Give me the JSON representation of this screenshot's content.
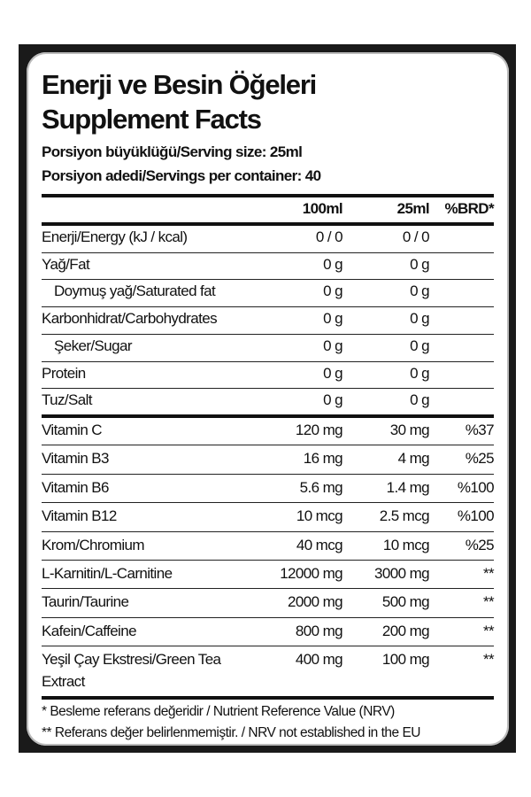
{
  "title_tr": "Enerji ve Besin Öğeleri",
  "title_en": "Supplement Facts",
  "serving_size": "Porsiyon büyüklüğü/Serving size: 25ml",
  "servings_per_container": "Porsiyon adedi/Servings per container: 40",
  "columns": [
    "",
    "100ml",
    "25ml",
    "%BRD*"
  ],
  "macros": [
    {
      "name": "Enerji/Energy (kJ / kcal)",
      "per100": "0 / 0",
      "per25": "0 / 0",
      "nrv": ""
    },
    {
      "name": "Yağ/Fat",
      "per100": "0 g",
      "per25": "0 g",
      "nrv": ""
    },
    {
      "name": "Doymuş yağ/Saturated fat",
      "per100": "0 g",
      "per25": "0 g",
      "nrv": ""
    },
    {
      "name": "Karbonhidrat/Carbohydrates",
      "per100": "0 g",
      "per25": "0 g",
      "nrv": ""
    },
    {
      "name": "Şeker/Sugar",
      "per100": "0 g",
      "per25": "0 g",
      "nrv": ""
    },
    {
      "name": "Protein",
      "per100": "0 g",
      "per25": "0 g",
      "nrv": ""
    },
    {
      "name": "Tuz/Salt",
      "per100": "0 g",
      "per25": "0 g",
      "nrv": ""
    }
  ],
  "actives": [
    {
      "name": "Vitamin C",
      "per100": "120 mg",
      "per25": "30 mg",
      "nrv": "%37"
    },
    {
      "name": "Vitamin B3",
      "per100": "16 mg",
      "per25": "4 mg",
      "nrv": "%25"
    },
    {
      "name": "Vitamin B6",
      "per100": "5.6 mg",
      "per25": "1.4 mg",
      "nrv": "%100"
    },
    {
      "name": "Vitamin B12",
      "per100": "10 mcg",
      "per25": "2.5 mcg",
      "nrv": "%100"
    },
    {
      "name": "Krom/Chromium",
      "per100": "40 mcg",
      "per25": "10 mcg",
      "nrv": "%25"
    },
    {
      "name": "L-Karnitin/L-Carnitine",
      "per100": "12000 mg",
      "per25": "3000 mg",
      "nrv": "**"
    },
    {
      "name": "Taurin/Taurine",
      "per100": "2000 mg",
      "per25": "500 mg",
      "nrv": "**"
    },
    {
      "name": "Kafein/Caffeine",
      "per100": "800 mg",
      "per25": "200 mg",
      "nrv": "**"
    },
    {
      "name": "Yeşil Çay Ekstresi/Green Tea",
      "name_line2": "Extract",
      "per100": "400 mg",
      "per25": "100 mg",
      "nrv": "**"
    }
  ],
  "footnotes": [
    "* Besleme referans değeridir / Nutrient Reference Value (NRV)",
    "** Referans değer belirlenmemiştir. / NRV not established in the EU"
  ]
}
